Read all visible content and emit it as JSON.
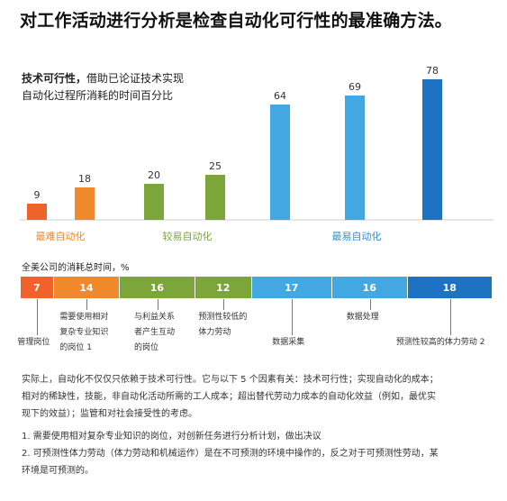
{
  "title": "对工作活动进行分析是检查自动化可行性的最准确方法。",
  "subtitle": {
    "bold": "技术可行性，",
    "line1_rest": "借助已论证技术实现",
    "line2": "自动化过程所消耗的时间百分比"
  },
  "chart_data": {
    "type": "bar",
    "values": [
      9,
      18,
      20,
      25,
      64,
      69,
      78
    ],
    "bar_colors": [
      "#f0622b",
      "#f0892b",
      "#7ca53a",
      "#7ca53a",
      "#43a7e2",
      "#43a7e2",
      "#1d72c4"
    ],
    "groups": [
      {
        "label": "最难自动化",
        "color": "#f08a2b"
      },
      {
        "label": "较易自动化",
        "color": "#7ca53a"
      },
      {
        "label": "最易自动化",
        "color": "#2f8fd6"
      }
    ],
    "ylim": [
      0,
      80
    ]
  },
  "segment_bar": {
    "label": "全美公司的消耗总时间，%",
    "values": [
      7,
      14,
      16,
      12,
      17,
      16,
      18
    ],
    "colors": [
      "#f0622b",
      "#f0892b",
      "#7ca53a",
      "#7ca53a",
      "#43a7e2",
      "#43a7e2",
      "#1d72c4"
    ]
  },
  "tasks": [
    {
      "text": "管理岗位"
    },
    {
      "text": "需要使用相对复杂专业知识的岗位 1"
    },
    {
      "text": "与利益关系者产生互动的岗位"
    },
    {
      "text": "预测性较低的体力劳动"
    },
    {
      "text": "数据采集"
    },
    {
      "text": "数据处理"
    },
    {
      "text": "预测性较高的体力劳动 2"
    }
  ],
  "paragraph": [
    "实际上，自动化不仅仅只依赖于技术可行性。它与以下 5 个因素有关：技术可行性；实现自动化的成本；",
    "相对的稀缺性，技能，非自动化活动所需的工人成本；超出替代劳动力成本的自动化效益（例如，最优实",
    "现下的效益）；监管和对社会接受性的考虑。"
  ],
  "notes": [
    "1. 需要使用相对复杂专业知识的岗位，对创新任务进行分析计划，做出决议",
    "2. 可预测性体力劳动（体力劳动和机械运作）是在不可预测的环境中操作的，反之对于可预测性劳动，某",
    "环境是可预测的。"
  ]
}
